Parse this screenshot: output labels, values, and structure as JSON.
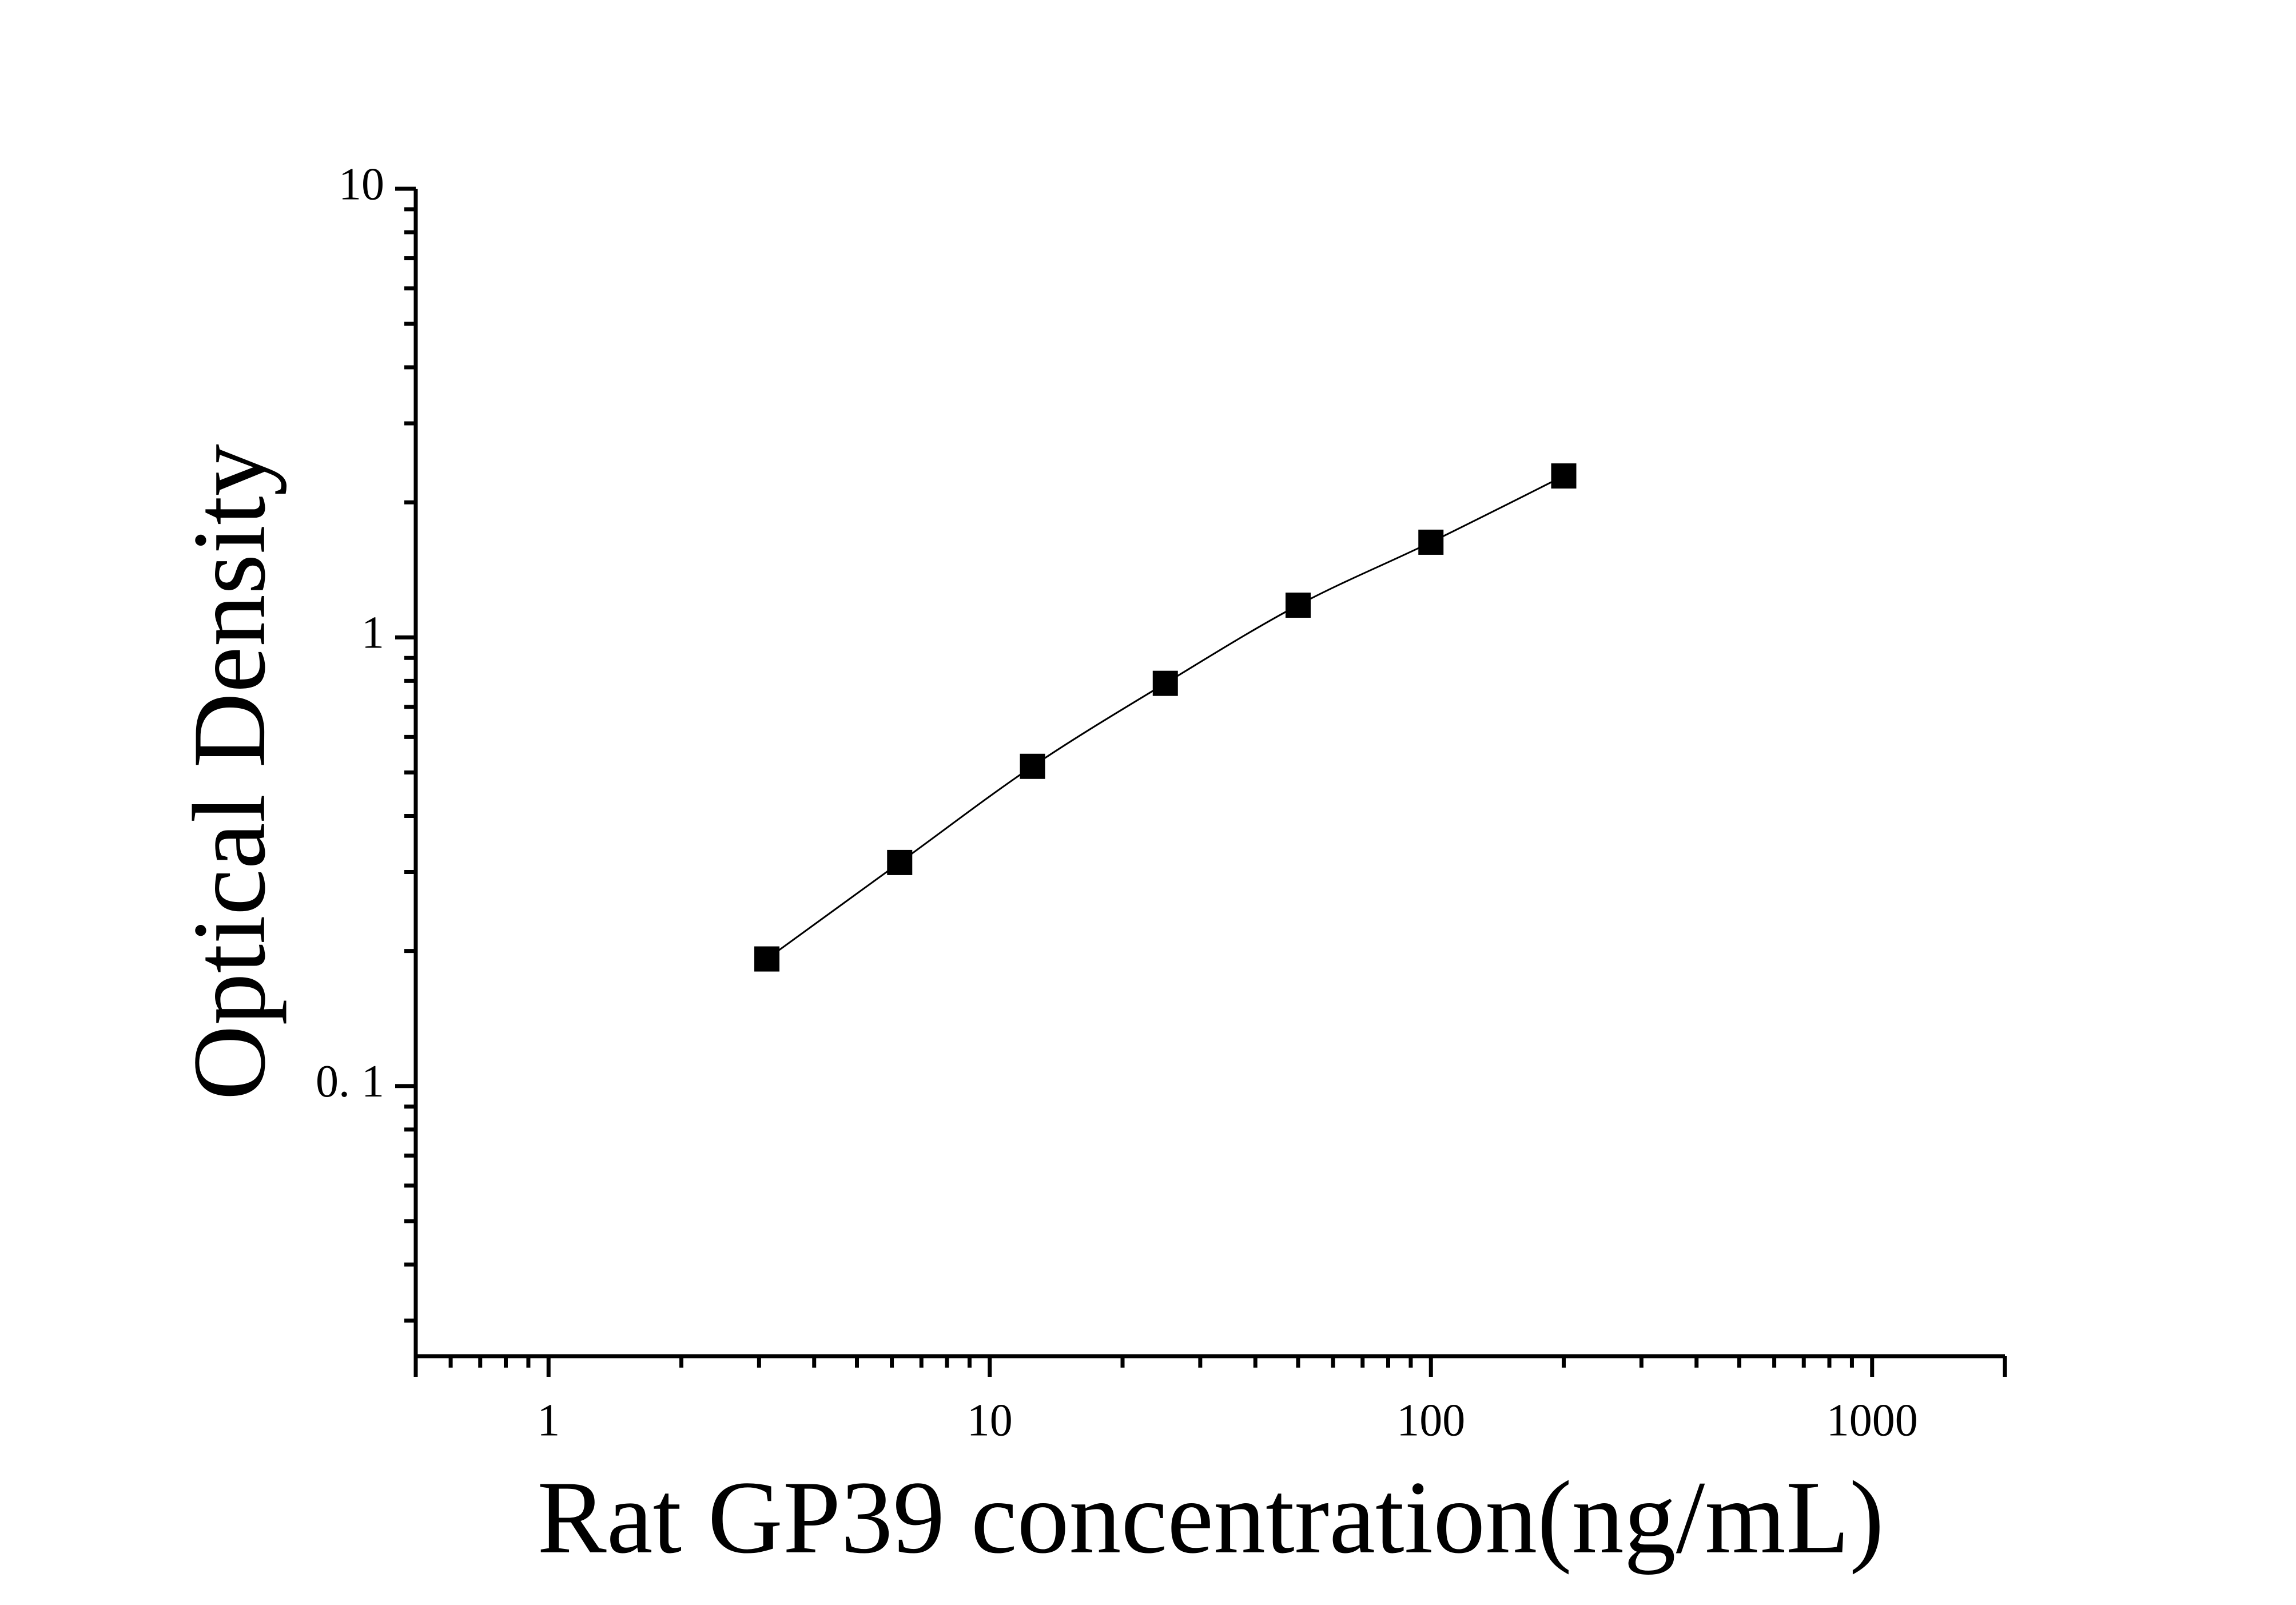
{
  "chart_data": {
    "type": "scatter",
    "x_label": "Rat GP39 concentration(ng/mL)",
    "y_label": "Optical Density",
    "x": [
      3.125,
      6.25,
      12.5,
      25,
      50,
      100,
      200
    ],
    "values": [
      0.192,
      0.315,
      0.516,
      0.79,
      1.18,
      1.63,
      2.29
    ],
    "color": "#000000",
    "fit_line": true,
    "log_x": true,
    "log_y": true,
    "xlim": [
      0.5,
      2000
    ],
    "xticks": [
      1,
      10,
      100,
      1000
    ],
    "ylim": [
      0.025,
      10
    ],
    "yticks": [
      {
        "value": 0.1,
        "label": "0. 1"
      },
      1,
      10
    ],
    "minor_ticks": true
  }
}
